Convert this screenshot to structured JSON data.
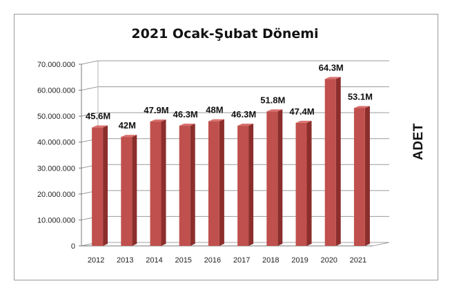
{
  "chart_data": {
    "type": "bar",
    "title": "2021 Ocak-Şubat Dönemi",
    "ylabel": "ADET",
    "xlabel": "",
    "categories": [
      "2012",
      "2013",
      "2014",
      "2015",
      "2016",
      "2017",
      "2018",
      "2019",
      "2020",
      "2021"
    ],
    "values": [
      45600000,
      42000000,
      47900000,
      46300000,
      48000000,
      46300000,
      51800000,
      47400000,
      64300000,
      53100000
    ],
    "data_labels": [
      "45.6M",
      "42M",
      "47.9M",
      "46.3M",
      "48M",
      "46.3M",
      "51.8M",
      "47.4M",
      "64.3M",
      "53.1M"
    ],
    "ylim": [
      0,
      70000000
    ],
    "y_ticks": [
      0,
      10000000,
      20000000,
      30000000,
      40000000,
      50000000,
      60000000,
      70000000
    ],
    "y_tick_labels": [
      "0",
      "10.000.000",
      "20.000.000",
      "30.000.000",
      "40.000.000",
      "50.000.000",
      "60.000.000",
      "70.000.000"
    ],
    "grid": true,
    "style": "3d-bar",
    "bar_color": "#C0504D",
    "bar_side_color": "#8B2E2C",
    "bar_top_color": "#D9716E"
  }
}
